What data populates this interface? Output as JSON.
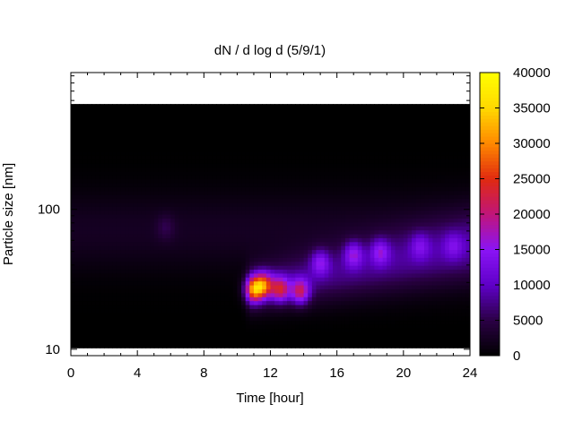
{
  "chart_data": {
    "type": "heatmap",
    "title": "dN / d log d (5/9/1)",
    "xlabel": "Time [hour]",
    "ylabel": "Particle size [nm]",
    "xlim": [
      0,
      24
    ],
    "ylim": [
      9,
      950
    ],
    "y_scale": "log",
    "x_ticks": [
      0,
      4,
      8,
      12,
      16,
      20,
      24
    ],
    "x_tick_labels": [
      "0",
      "4",
      "8",
      "12",
      "16",
      "20",
      "24"
    ],
    "y_ticks": [
      10,
      100
    ],
    "y_tick_labels": [
      "10",
      "100"
    ],
    "colorbar": {
      "range": [
        0,
        40000
      ],
      "ticks": [
        0,
        5000,
        10000,
        15000,
        20000,
        25000,
        30000,
        35000,
        40000
      ],
      "tick_labels": [
        "0",
        "5000",
        "10000",
        "15000",
        "20000",
        "25000",
        "30000",
        "35000",
        "40000"
      ],
      "colormap": [
        "#000000",
        "#2a0044",
        "#5f00c8",
        "#8a14f5",
        "#c0157a",
        "#e02a10",
        "#ff8800",
        "#ffd800",
        "#ffff00"
      ]
    },
    "data_extent": {
      "upper_edge_size_nm": 550,
      "lower_edge_size_nm": 10
    },
    "features": [
      {
        "time_hour": 5.7,
        "size_nm": 75,
        "value": 4000
      },
      {
        "time_hour": 11.0,
        "size_nm": 27,
        "value": 30000
      },
      {
        "time_hour": 11.6,
        "size_nm": 29,
        "value": 26000
      },
      {
        "time_hour": 12.6,
        "size_nm": 27,
        "value": 22000
      },
      {
        "time_hour": 13.8,
        "size_nm": 26,
        "value": 21000
      },
      {
        "time_hour": 15.0,
        "size_nm": 42,
        "value": 12000
      },
      {
        "time_hour": 17.0,
        "size_nm": 48,
        "value": 13000
      },
      {
        "time_hour": 18.6,
        "size_nm": 50,
        "value": 12000
      },
      {
        "time_hour": 21.0,
        "size_nm": 55,
        "value": 8000
      },
      {
        "time_hour": 23.0,
        "size_nm": 55,
        "value": 7000
      }
    ]
  }
}
